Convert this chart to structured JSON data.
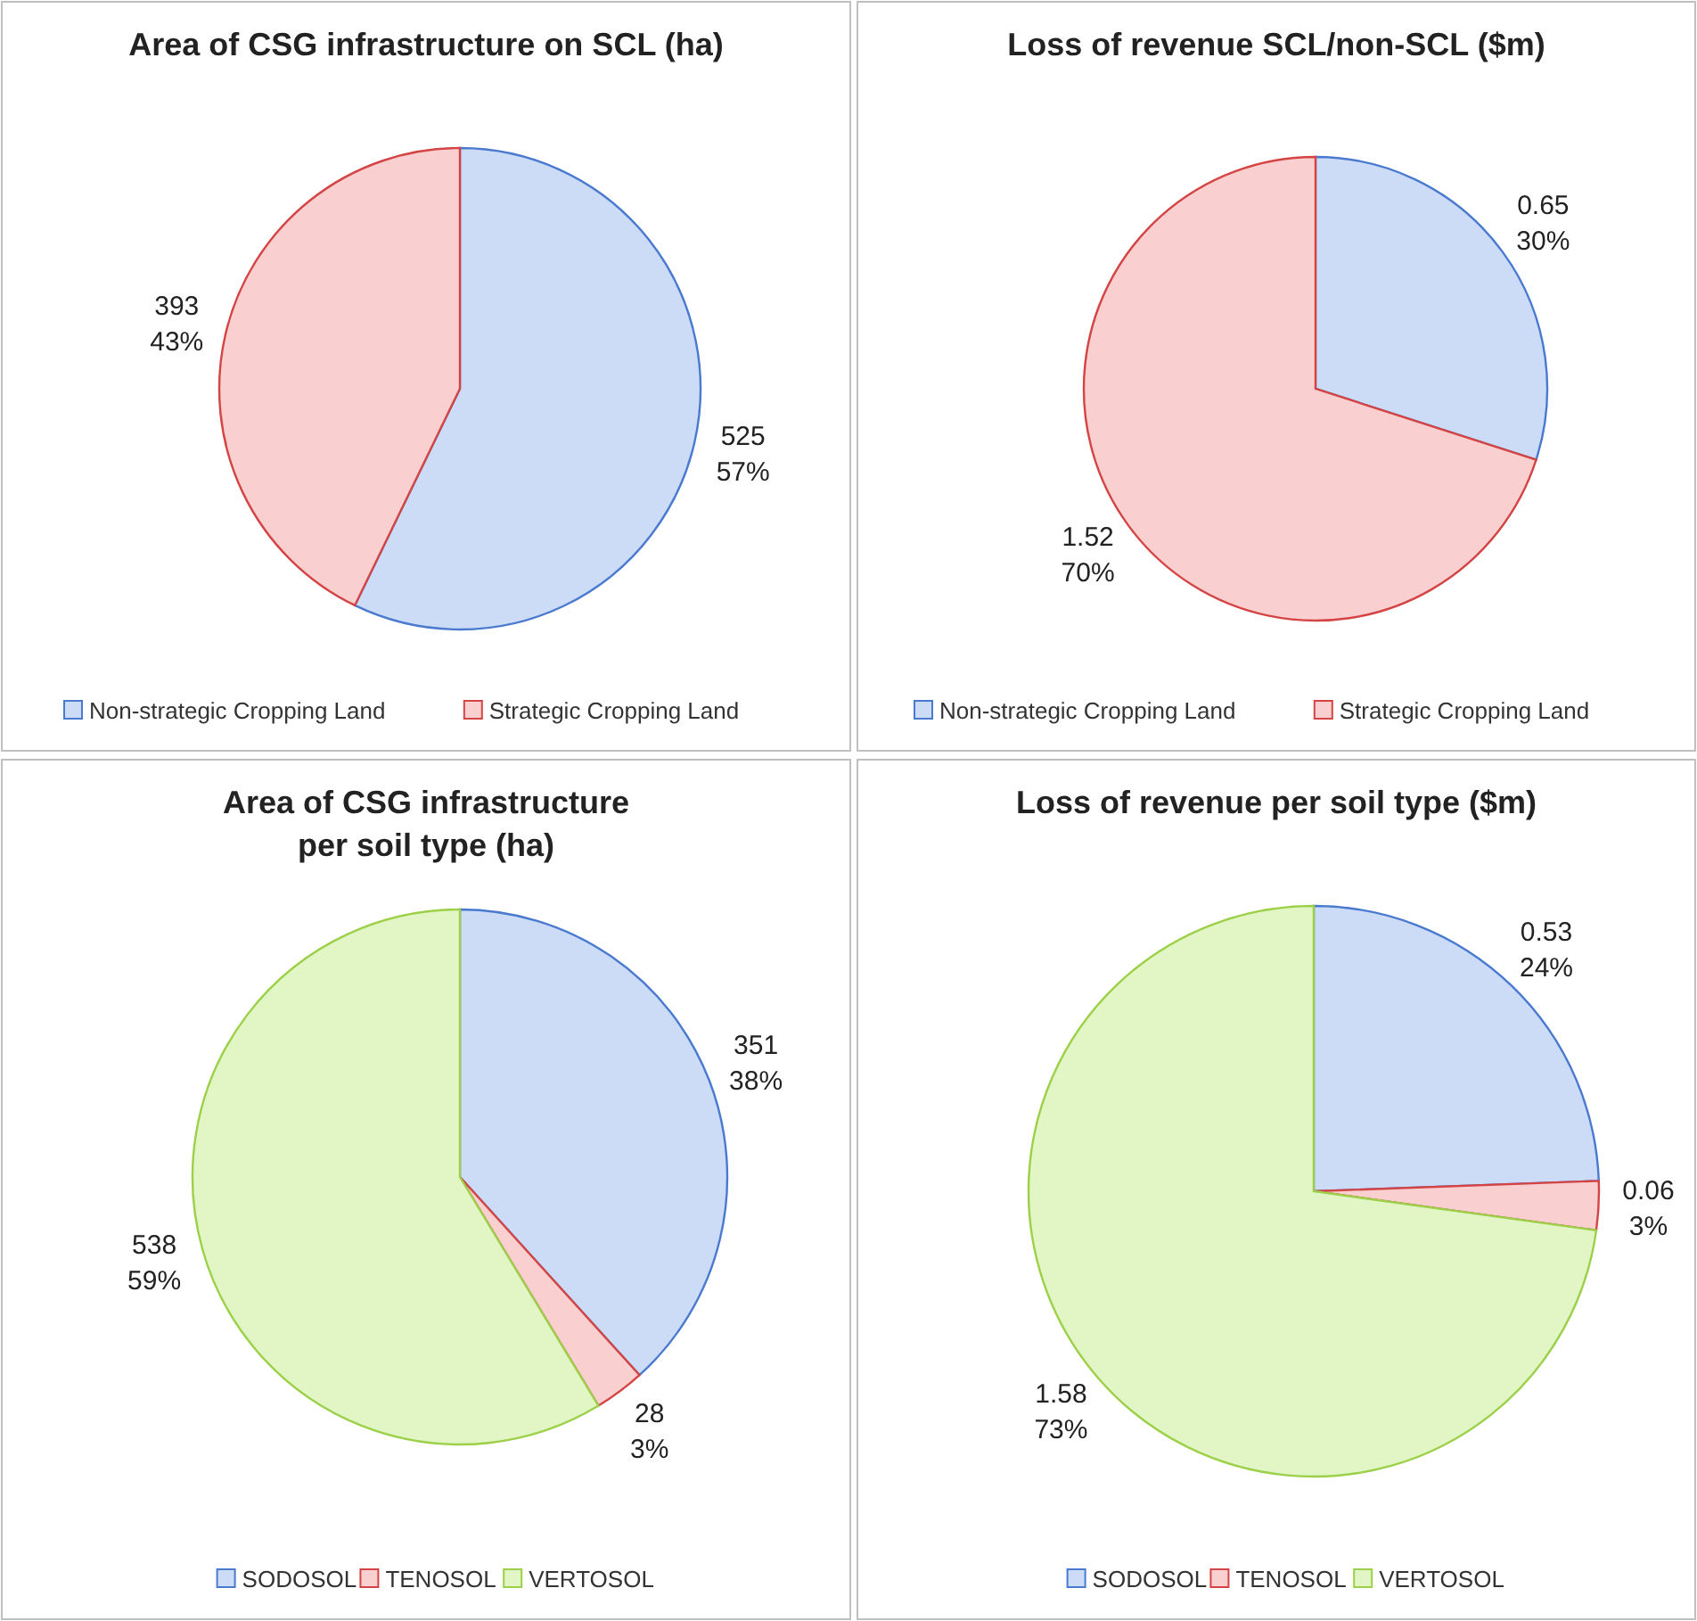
{
  "chart_data": [
    {
      "type": "pie",
      "title": "Area of CSG infrastructure on SCL (ha)",
      "categories": [
        "Non-strategic Cropping Land",
        "Strategic Cropping Land"
      ],
      "values": [
        525,
        393
      ],
      "colors": [
        "#cddcf6",
        "#f9cfcf"
      ],
      "value_labels": [
        "525\n57%",
        "393\n43%"
      ],
      "legend": "bottom"
    },
    {
      "type": "pie",
      "title": "Loss of revenue SCL/non-SCL ($m)",
      "categories": [
        "Non-strategic Cropping Land",
        "Strategic Cropping Land"
      ],
      "values": [
        0.65,
        1.52
      ],
      "colors": [
        "#cddcf6",
        "#f9cfcf"
      ],
      "value_labels": [
        "0.65\n30%",
        "1.52\n70%"
      ],
      "legend": "bottom"
    },
    {
      "type": "pie",
      "title": "Area of CSG infrastructure per soil type (ha)",
      "categories": [
        "SODOSOL",
        "TENOSOL",
        "VERTOSOL"
      ],
      "values": [
        351,
        28,
        538
      ],
      "colors": [
        "#cddcf6",
        "#f9cfcf",
        "#e2f5c4"
      ],
      "value_labels": [
        "351\n38%",
        "28\n3%",
        "538\n59%"
      ],
      "legend": "bottom"
    },
    {
      "type": "pie",
      "title": "Loss of revenue per soil type ($m)",
      "categories": [
        "SODOSOL",
        "TENOSOL",
        "VERTOSOL"
      ],
      "values": [
        0.53,
        0.06,
        1.58
      ],
      "colors": [
        "#cddcf6",
        "#f9cfcf",
        "#e2f5c4"
      ],
      "value_labels": [
        "0.53\n24%",
        "0.06\n3%",
        "1.58\n73%"
      ],
      "legend": "bottom"
    }
  ]
}
